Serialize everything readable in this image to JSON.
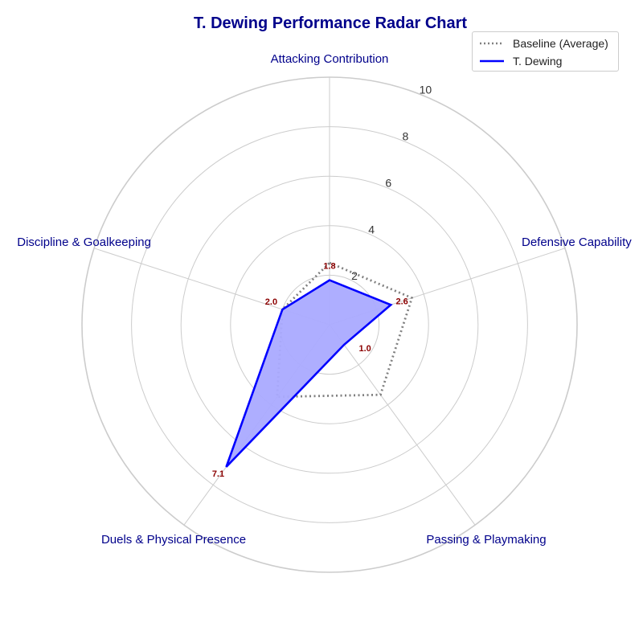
{
  "title": "T. Dewing Performance Radar Chart",
  "legend": {
    "baseline_label": "Baseline (Average)",
    "player_label": "T. Dewing"
  },
  "colors": {
    "title": "#00008b",
    "category_label": "#00008b",
    "player_line": "#0000ff",
    "player_fill": "#aaaaff",
    "baseline_line": "#808080",
    "value_label": "#8b0000",
    "grid": "#cccccc"
  },
  "chart_data": {
    "type": "radar",
    "title": "T. Dewing Performance Radar Chart",
    "categories": [
      "Attacking Contribution",
      "Defensive Capability",
      "Passing & Playmaking",
      "Duels & Physical Presence",
      "Discipline & Goalkeeping"
    ],
    "radial_ticks": [
      2,
      4,
      6,
      8,
      10
    ],
    "rlim": [
      0,
      10
    ],
    "grid": true,
    "legend_position": "top-right",
    "series": [
      {
        "name": "Baseline (Average)",
        "style": "dotted",
        "values": [
          2.5,
          3.5,
          3.5,
          3.6,
          2.0
        ]
      },
      {
        "name": "T. Dewing",
        "style": "solid-filled",
        "values": [
          1.8,
          2.6,
          1.0,
          7.1,
          2.0
        ]
      }
    ],
    "value_labels": [
      "1.8",
      "2.6",
      "1.0",
      "7.1",
      "2.0"
    ]
  }
}
